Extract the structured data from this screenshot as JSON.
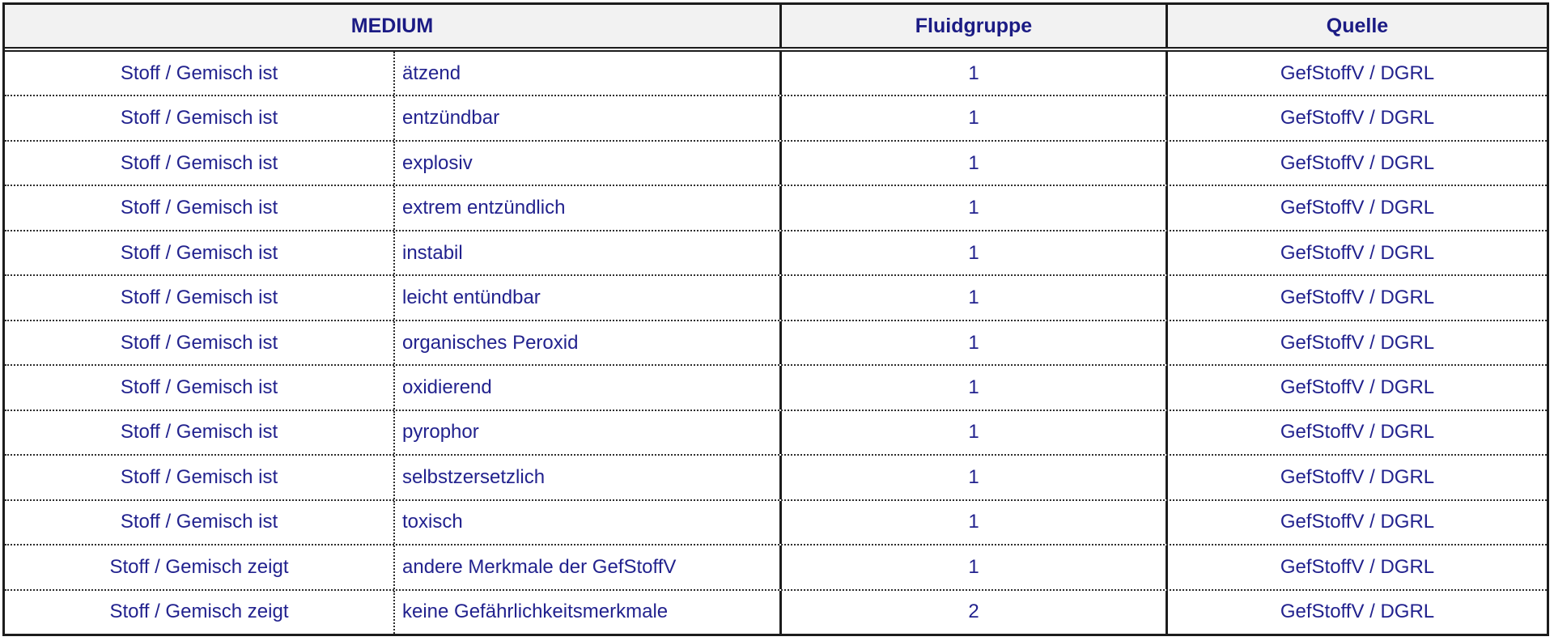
{
  "table": {
    "headers": {
      "medium": "MEDIUM",
      "fluidgruppe": "Fluidgruppe",
      "quelle": "Quelle"
    },
    "rows": [
      {
        "subject": "Stoff / Gemisch ist",
        "property": "ätzend",
        "fluidgruppe": "1",
        "quelle": "GefStoffV / DGRL"
      },
      {
        "subject": "Stoff / Gemisch ist",
        "property": "entzündbar",
        "fluidgruppe": "1",
        "quelle": "GefStoffV / DGRL"
      },
      {
        "subject": "Stoff / Gemisch ist",
        "property": "explosiv",
        "fluidgruppe": "1",
        "quelle": "GefStoffV / DGRL"
      },
      {
        "subject": "Stoff / Gemisch ist",
        "property": "extrem entzündlich",
        "fluidgruppe": "1",
        "quelle": "GefStoffV / DGRL"
      },
      {
        "subject": "Stoff / Gemisch ist",
        "property": "instabil",
        "fluidgruppe": "1",
        "quelle": "GefStoffV / DGRL"
      },
      {
        "subject": "Stoff / Gemisch ist",
        "property": "leicht entündbar",
        "fluidgruppe": "1",
        "quelle": "GefStoffV / DGRL"
      },
      {
        "subject": "Stoff / Gemisch ist",
        "property": "organisches Peroxid",
        "fluidgruppe": "1",
        "quelle": "GefStoffV / DGRL"
      },
      {
        "subject": "Stoff / Gemisch ist",
        "property": "oxidierend",
        "fluidgruppe": "1",
        "quelle": "GefStoffV / DGRL"
      },
      {
        "subject": "Stoff / Gemisch ist",
        "property": "pyrophor",
        "fluidgruppe": "1",
        "quelle": "GefStoffV / DGRL"
      },
      {
        "subject": "Stoff / Gemisch ist",
        "property": "selbstzersetzlich",
        "fluidgruppe": "1",
        "quelle": "GefStoffV / DGRL"
      },
      {
        "subject": "Stoff / Gemisch ist",
        "property": "toxisch",
        "fluidgruppe": "1",
        "quelle": "GefStoffV / DGRL"
      },
      {
        "subject": "Stoff / Gemisch zeigt",
        "property": "andere Merkmale der GefStoffV",
        "fluidgruppe": "1",
        "quelle": "GefStoffV / DGRL"
      },
      {
        "subject": "Stoff / Gemisch zeigt",
        "property": "keine Gefährlichkeitsmerkmale",
        "fluidgruppe": "2",
        "quelle": "GefStoffV / DGRL"
      }
    ],
    "colors": {
      "text_navy": "#22228e",
      "header_text_navy": "#1b1b84",
      "header_background": "#f2f2f2",
      "border": "#1c1c1c"
    }
  }
}
